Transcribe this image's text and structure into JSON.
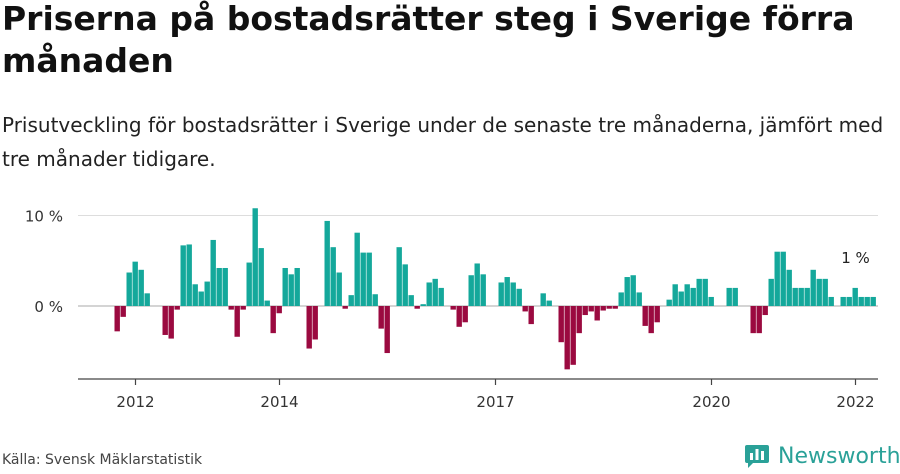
{
  "title": "Priserna på bostadsrätter steg i Sverige förra månaden",
  "subtitle": "Prisutveckling för bostadsrätter i Sverige under de senaste tre månaderna, jämfört med tre månader tidigare.",
  "source": "Källa: Svensk Mäklarstatistik",
  "brand": "Newsworthy",
  "colors": {
    "positive": "#14a89b",
    "negative": "#9b0a40",
    "brand": "#2aa198"
  },
  "chart_data": {
    "type": "bar",
    "ylim": [
      -8,
      11
    ],
    "y_ticks": [
      {
        "value": 0,
        "label": "0 %"
      },
      {
        "value": 10,
        "label": "10 %"
      }
    ],
    "x_ticks": [
      {
        "index": 3,
        "label": "2012"
      },
      {
        "index": 27,
        "label": "2014"
      },
      {
        "index": 63,
        "label": "2017"
      },
      {
        "index": 99,
        "label": "2020"
      },
      {
        "index": 123,
        "label": "2022"
      }
    ],
    "annotation": {
      "index": 123,
      "text": "1 %"
    },
    "values": [
      -2.8,
      -1.2,
      3.7,
      4.9,
      4.0,
      1.4,
      0,
      0,
      -3.2,
      -3.6,
      -0.4,
      6.7,
      6.8,
      2.4,
      1.6,
      2.7,
      7.3,
      4.2,
      4.2,
      -0.4,
      -3.4,
      -0.4,
      4.8,
      10.8,
      6.4,
      0.6,
      -3.0,
      -0.8,
      4.2,
      3.5,
      4.2,
      0,
      -4.7,
      -3.7,
      0,
      9.4,
      6.5,
      3.7,
      -0.3,
      1.2,
      8.1,
      5.9,
      5.9,
      1.3,
      -2.5,
      -5.2,
      0,
      6.5,
      4.6,
      1.2,
      -0.3,
      0.2,
      2.6,
      3.0,
      2.0,
      0,
      -0.4,
      -2.3,
      -1.8,
      3.4,
      4.7,
      3.5,
      0,
      0,
      2.6,
      3.2,
      2.6,
      1.9,
      -0.6,
      -2.0,
      0,
      1.4,
      0.6,
      0,
      -4.0,
      -7.0,
      -6.5,
      -3.0,
      -1.0,
      -0.6,
      -1.6,
      -0.5,
      -0.3,
      -0.3,
      1.5,
      3.2,
      3.4,
      1.5,
      -2.2,
      -3.0,
      -1.8,
      0,
      0.7,
      2.4,
      1.6,
      2.4,
      2.0,
      3.0,
      3.0,
      1.0,
      0,
      0,
      2.0,
      2.0,
      0,
      0,
      -3.0,
      -3.0,
      -1.0,
      3.0,
      6.0,
      6.0,
      4.0,
      2.0,
      2.0,
      2.0,
      4.0,
      3.0,
      3.0,
      1.0,
      0,
      1.0,
      1.0,
      2.0,
      1.0,
      1.0,
      1.0
    ]
  }
}
